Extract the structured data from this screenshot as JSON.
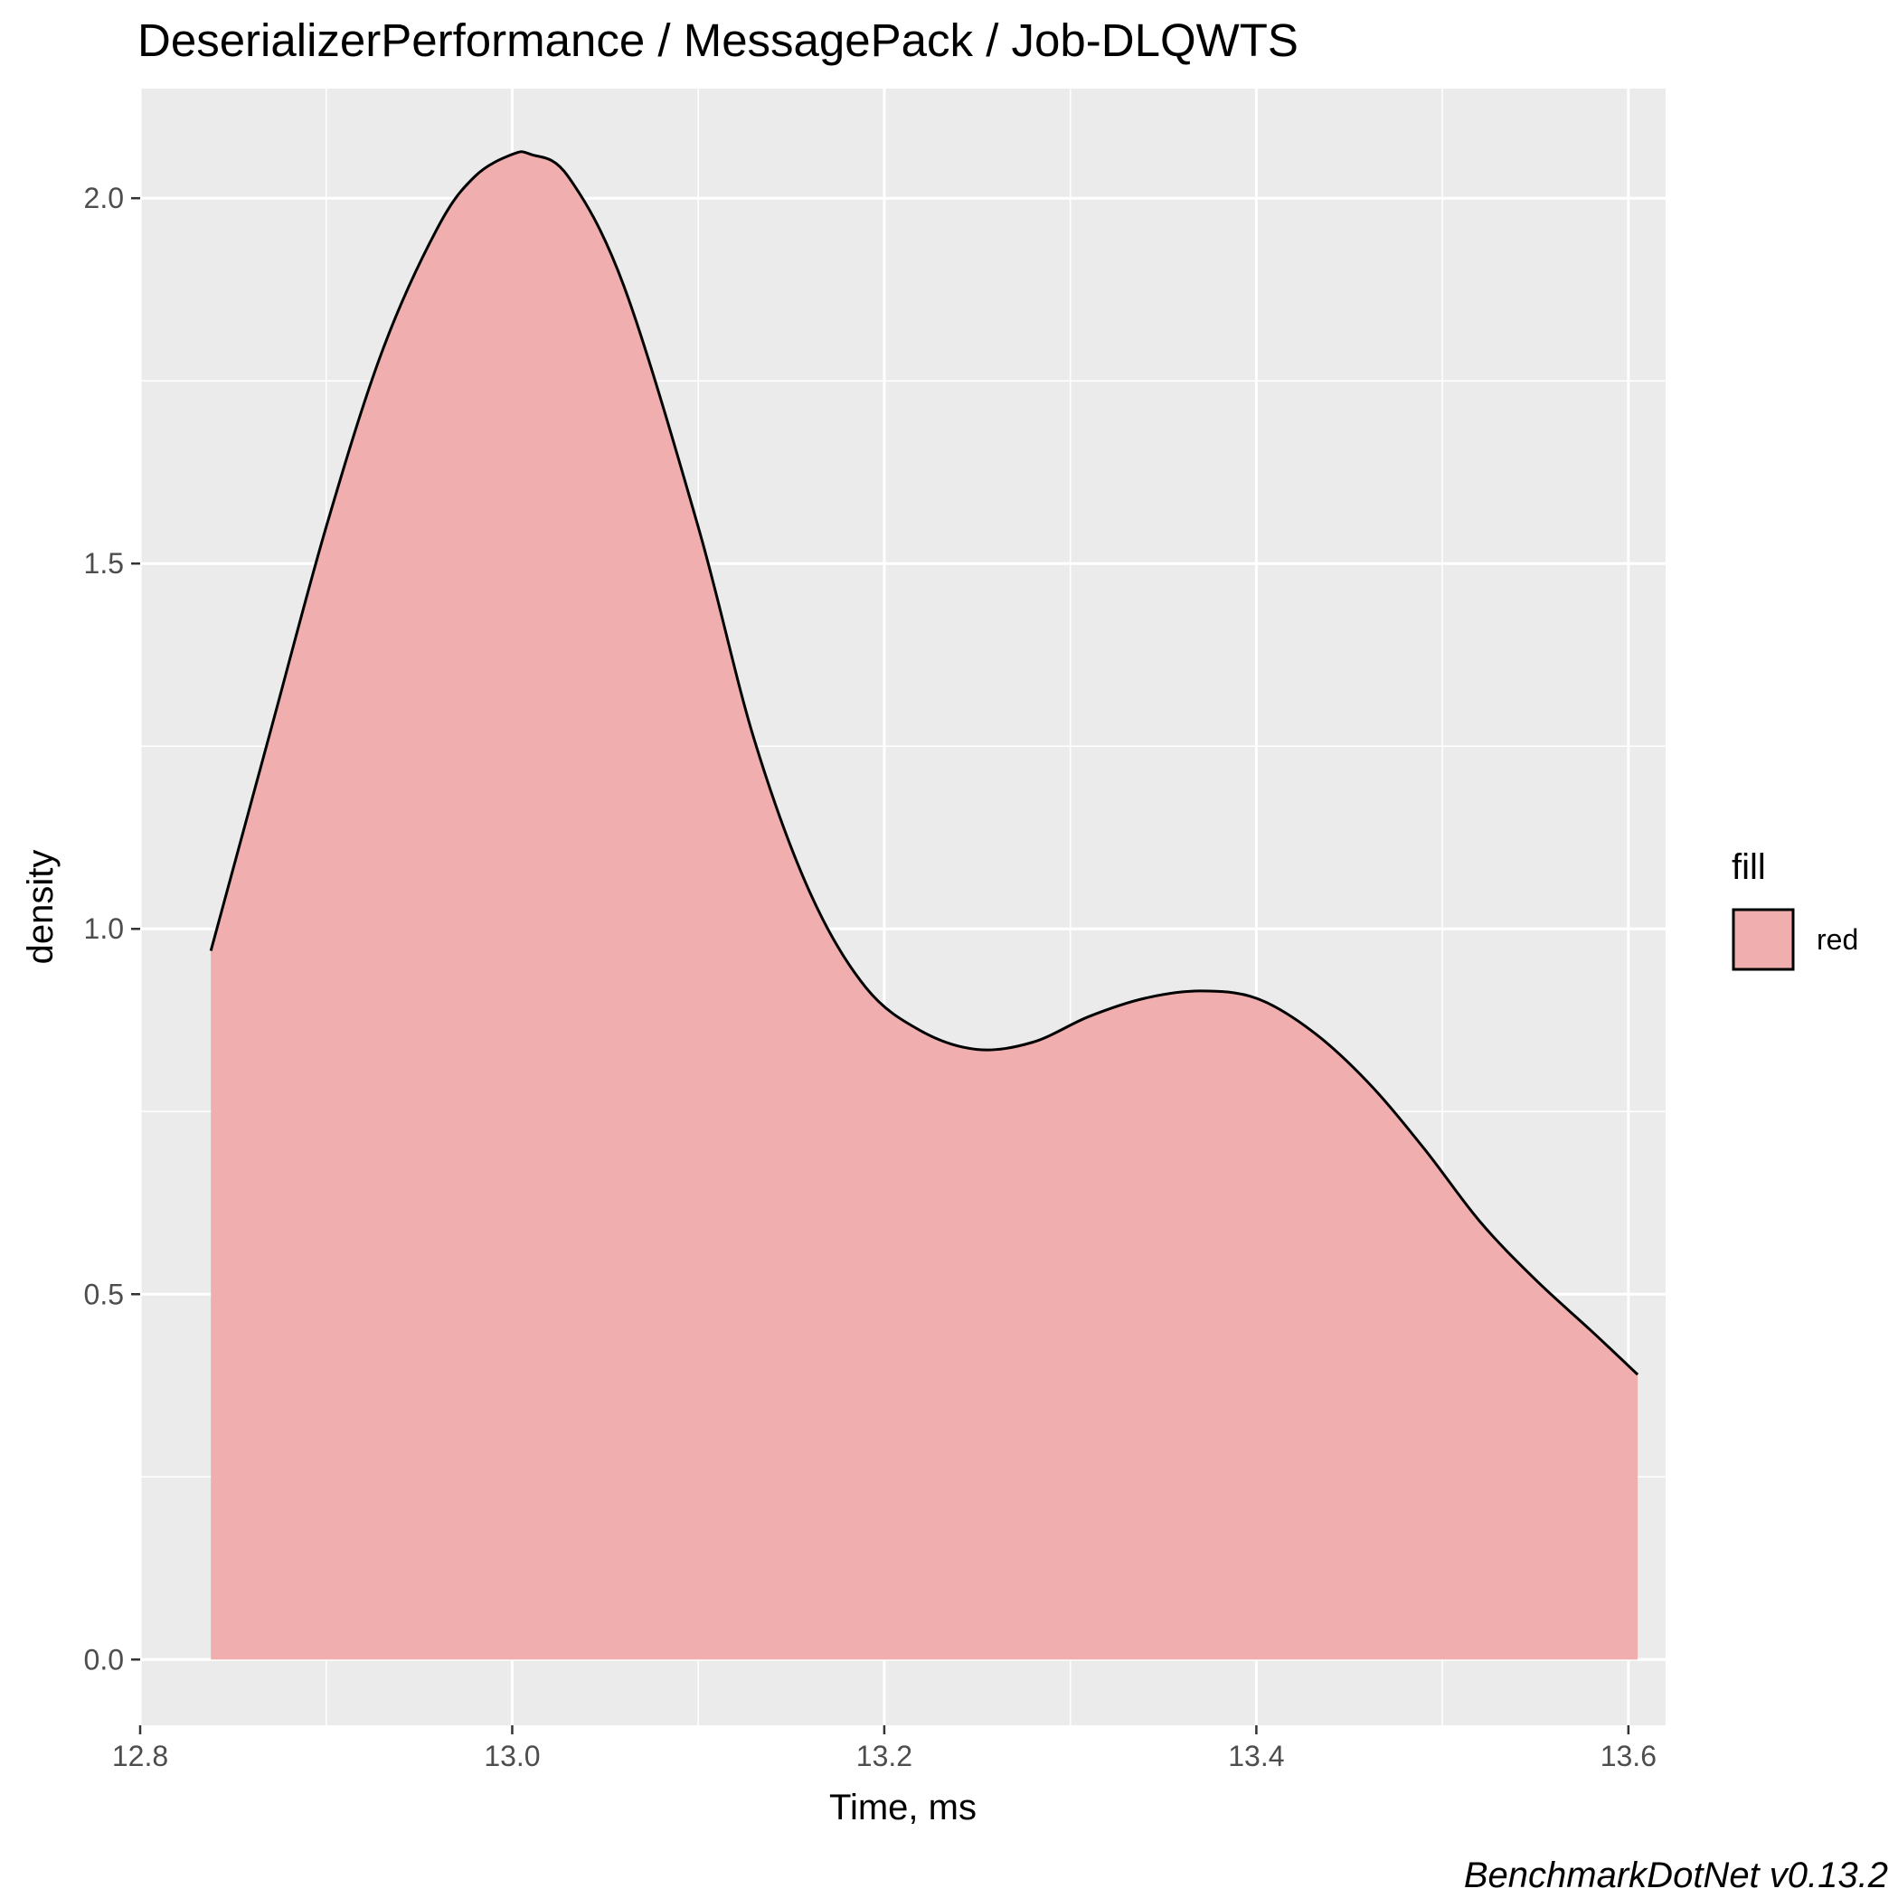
{
  "chart_data": {
    "type": "area",
    "title": "DeserializerPerformance / MessagePack / Job-DLQWTS",
    "xlabel": "Time, ms",
    "ylabel": "density",
    "xlim": [
      12.8,
      13.62
    ],
    "ylim": [
      -0.09,
      2.15
    ],
    "x_ticks": [
      12.8,
      13.0,
      13.2,
      13.4,
      13.6
    ],
    "x_tick_labels": [
      "12.8",
      "13.0",
      "13.2",
      "13.4",
      "13.6"
    ],
    "y_ticks": [
      0.0,
      0.5,
      1.0,
      1.5,
      2.0
    ],
    "y_tick_labels": [
      "0.0",
      "0.5",
      "1.0",
      "1.5",
      "2.0"
    ],
    "grid": true,
    "series": [
      {
        "name": "red",
        "fill_color": "#f1aeae",
        "line_color": "#000000",
        "x": [
          12.838,
          12.87,
          12.9,
          12.93,
          12.96,
          12.98,
          13.0,
          13.01,
          13.03,
          13.06,
          13.1,
          13.13,
          13.16,
          13.19,
          13.22,
          13.25,
          13.28,
          13.31,
          13.34,
          13.37,
          13.4,
          13.43,
          13.46,
          13.49,
          13.52,
          13.55,
          13.58,
          13.605
        ],
        "y": [
          0.97,
          1.27,
          1.55,
          1.79,
          1.96,
          2.03,
          2.06,
          2.06,
          2.03,
          1.88,
          1.55,
          1.26,
          1.05,
          0.92,
          0.86,
          0.835,
          0.845,
          0.88,
          0.905,
          0.915,
          0.905,
          0.86,
          0.79,
          0.7,
          0.6,
          0.52,
          0.45,
          0.39
        ]
      }
    ],
    "legend": {
      "title": "fill",
      "entries": [
        "red"
      ],
      "position": "right"
    }
  },
  "caption": "BenchmarkDotNet v0.13.2"
}
